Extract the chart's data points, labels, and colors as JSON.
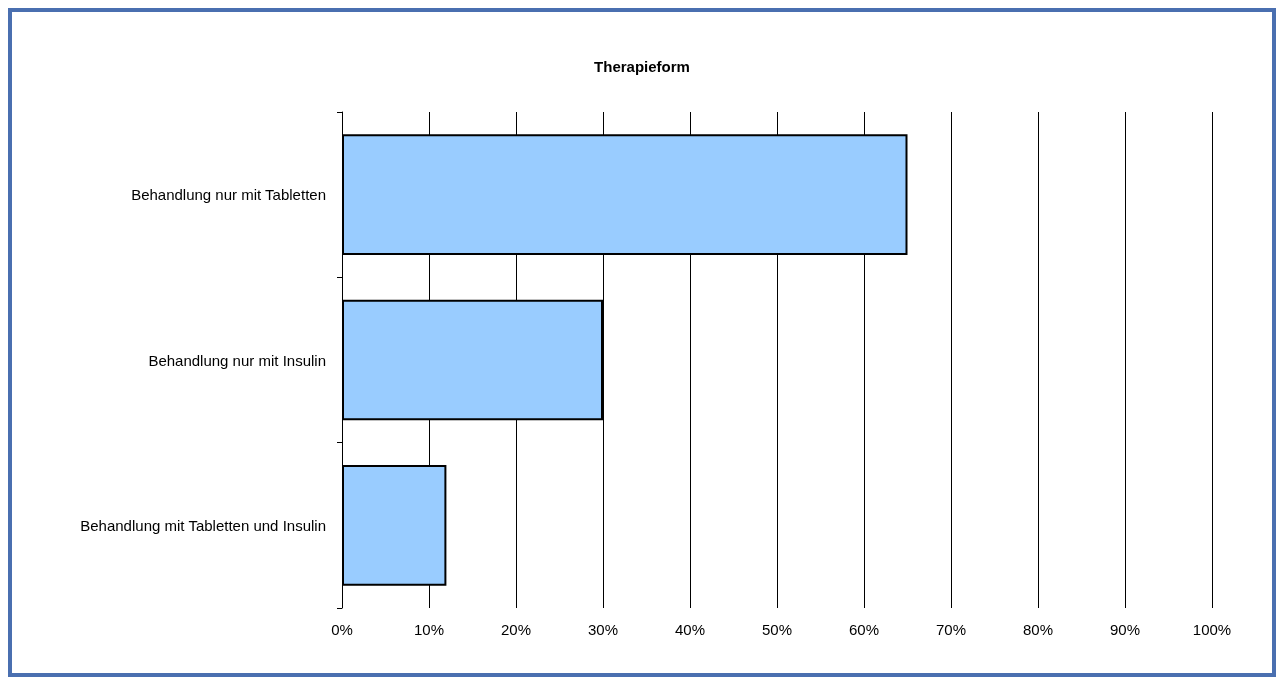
{
  "chart_data": {
    "type": "bar",
    "orientation": "horizontal",
    "title": "Therapieform",
    "categories": [
      "Behandlung nur mit Tabletten",
      "Behandlung nur mit Insulin",
      "Behandlung mit Tabletten und Insulin"
    ],
    "values": [
      65,
      30,
      12
    ],
    "color": "#99ccff",
    "xlim": [
      0,
      100
    ],
    "xticks": [
      {
        "value": 0,
        "label": "0%"
      },
      {
        "value": 10,
        "label": "10%"
      },
      {
        "value": 20,
        "label": "20%"
      },
      {
        "value": 30,
        "label": "30%"
      },
      {
        "value": 40,
        "label": "40%"
      },
      {
        "value": 50,
        "label": "50%"
      },
      {
        "value": 60,
        "label": "60%"
      },
      {
        "value": 70,
        "label": "70%"
      },
      {
        "value": 80,
        "label": "80%"
      },
      {
        "value": 90,
        "label": "90%"
      },
      {
        "value": 100,
        "label": "100%"
      }
    ],
    "grid": "x"
  }
}
